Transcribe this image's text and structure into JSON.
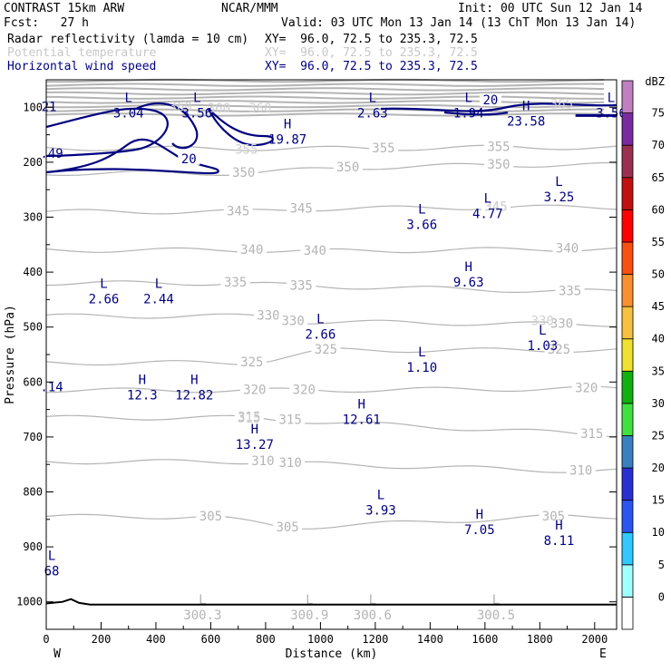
{
  "header": {
    "left1": "CONTRAST 15km ARW",
    "left2": "Fcst:   27 h",
    "center1": "NCAR/MMM",
    "init": "Init: 00 UTC Sun 12 Jan 14",
    "valid": "Valid: 03 UTC Mon 13 Jan 14 (13 ChT Mon 13 Jan 14)",
    "field1": "Radar reflectivity (lamda = 10 cm)",
    "field2": "Potential temperature",
    "field3": "Horizontal wind speed",
    "xy1": "XY=  96.0, 72.5 to 235.3, 72.5",
    "xy2": "XY=  96.0, 72.5 to 235.3, 72.5",
    "xy3": "XY=  96.0, 72.5 to 235.3, 72.5"
  },
  "colors": {
    "theta": "#b4b4b4",
    "wind": "#000080",
    "axis": "#000000"
  },
  "chart_data": {
    "type": "cross-section",
    "xlabel": "Distance (km)",
    "ylabel": "Pressure (hPa)",
    "xlim": [
      0,
      2080
    ],
    "ylim": [
      1050,
      50
    ],
    "x_ticks": [
      0,
      200,
      400,
      600,
      800,
      1000,
      1200,
      1400,
      1600,
      1800,
      2000
    ],
    "y_ticks": [
      100,
      200,
      300,
      400,
      500,
      600,
      700,
      800,
      900,
      1000
    ],
    "x_ends": {
      "left": "W",
      "right": "E"
    },
    "colorbar": {
      "unit": "dBZ",
      "levels": [
        0,
        5,
        10,
        15,
        20,
        25,
        30,
        35,
        40,
        45,
        50,
        55,
        60,
        65,
        70,
        75
      ],
      "colors": [
        "#ffffff",
        "#a0ffff",
        "#30c8ff",
        "#2a55f0",
        "#2a30d0",
        "#3a80c0",
        "#40e040",
        "#10b010",
        "#f0e030",
        "#f8c040",
        "#f89030",
        "#f85010",
        "#ff0000",
        "#c01010",
        "#9a3050",
        "#7a2aa0",
        "#c080c0"
      ]
    },
    "theta_contours": [
      {
        "value": 355,
        "labels": [
          {
            "x": 1230,
            "p": 175
          },
          {
            "x": 1650,
            "p": 173
          }
        ]
      },
      {
        "value": 350,
        "labels": [
          {
            "x": 720,
            "p": 220
          },
          {
            "x": 1100,
            "p": 210
          },
          {
            "x": 1650,
            "p": 205
          }
        ]
      },
      {
        "value": 345,
        "labels": [
          {
            "x": 700,
            "p": 290
          },
          {
            "x": 930,
            "p": 285
          },
          {
            "x": 1640,
            "p": 282
          }
        ]
      },
      {
        "value": 340,
        "labels": [
          {
            "x": 750,
            "p": 360
          },
          {
            "x": 980,
            "p": 362
          },
          {
            "x": 1900,
            "p": 358
          }
        ]
      },
      {
        "value": 335,
        "labels": [
          {
            "x": 690,
            "p": 420
          },
          {
            "x": 930,
            "p": 425
          },
          {
            "x": 1910,
            "p": 435
          }
        ]
      },
      {
        "value": 330,
        "labels": [
          {
            "x": 810,
            "p": 480
          },
          {
            "x": 900,
            "p": 490
          },
          {
            "x": 1880,
            "p": 495
          }
        ]
      },
      {
        "value": 325,
        "labels": [
          {
            "x": 750,
            "p": 565
          },
          {
            "x": 1020,
            "p": 542
          },
          {
            "x": 1870,
            "p": 542
          }
        ]
      },
      {
        "value": 320,
        "labels": [
          {
            "x": 760,
            "p": 615
          },
          {
            "x": 940,
            "p": 615
          },
          {
            "x": 1970,
            "p": 612
          }
        ]
      },
      {
        "value": 315,
        "labels": [
          {
            "x": 740,
            "p": 665
          },
          {
            "x": 890,
            "p": 670
          },
          {
            "x": 1990,
            "p": 695
          }
        ]
      },
      {
        "value": 310,
        "labels": [
          {
            "x": 790,
            "p": 745
          },
          {
            "x": 890,
            "p": 748
          },
          {
            "x": 1950,
            "p": 762
          }
        ]
      },
      {
        "value": 305,
        "labels": [
          {
            "x": 600,
            "p": 845
          },
          {
            "x": 880,
            "p": 865
          },
          {
            "x": 1850,
            "p": 845
          }
        ]
      }
    ],
    "wind_contour_labels": [
      {
        "text": "20",
        "x": 520,
        "p": 195
      },
      {
        "text": "20",
        "x": 1620,
        "p": 88
      }
    ],
    "extrema": [
      {
        "type": "L",
        "value": "3.04",
        "x": 300,
        "p": 97,
        "color": "wind"
      },
      {
        "type": "L",
        "value": "3.56",
        "x": 550,
        "p": 97,
        "color": "wind"
      },
      {
        "type": "L",
        "value": "2.63",
        "x": 1190,
        "p": 97,
        "color": "wind"
      },
      {
        "type": "L",
        "value": "1.94",
        "x": 1540,
        "p": 97,
        "color": "wind"
      },
      {
        "type": "H",
        "value": "23.58",
        "x": 1750,
        "p": 112,
        "color": "wind"
      },
      {
        "type": "L",
        "value": "3.56",
        "x": 2060,
        "p": 97,
        "color": "wind"
      },
      {
        "type": "H",
        "value": "19.87",
        "x": 880,
        "p": 145,
        "color": "wind"
      },
      {
        "type": "L",
        "value": "3.25",
        "x": 1870,
        "p": 250,
        "color": "wind"
      },
      {
        "type": "L",
        "value": "4.77",
        "x": 1610,
        "p": 280,
        "color": "wind"
      },
      {
        "type": "L",
        "value": "3.66",
        "x": 1370,
        "p": 300,
        "color": "wind"
      },
      {
        "type": "H",
        "value": "9.63",
        "x": 1540,
        "p": 405,
        "color": "wind"
      },
      {
        "type": "L",
        "value": "2.66",
        "x": 210,
        "p": 435,
        "color": "wind"
      },
      {
        "type": "L",
        "value": "2.44",
        "x": 410,
        "p": 435,
        "color": "wind"
      },
      {
        "type": "L",
        "value": "2.66",
        "x": 1000,
        "p": 500,
        "color": "wind"
      },
      {
        "type": "L",
        "value": "1.03",
        "x": 1810,
        "p": 520,
        "color": "wind"
      },
      {
        "type": "L",
        "value": "1.10",
        "x": 1370,
        "p": 560,
        "color": "wind"
      },
      {
        "type": "H",
        "value": "12.3",
        "x": 350,
        "p": 610,
        "color": "wind"
      },
      {
        "type": "H",
        "value": "12.82",
        "x": 540,
        "p": 610,
        "color": "wind"
      },
      {
        "type": "H",
        "value": "12.61",
        "x": 1150,
        "p": 655,
        "color": "wind"
      },
      {
        "type": "H",
        "value": "13.27",
        "x": 760,
        "p": 700,
        "color": "wind"
      },
      {
        "type": "L",
        "value": "3.93",
        "x": 1220,
        "p": 820,
        "color": "wind"
      },
      {
        "type": "H",
        "value": "7.05",
        "x": 1580,
        "p": 855,
        "color": "wind"
      },
      {
        "type": "H",
        "value": "8.11",
        "x": 1870,
        "p": 875,
        "color": "wind"
      },
      {
        "type": "L",
        "value": "68",
        "x": 20,
        "p": 930,
        "color": "wind"
      },
      {
        "type": "L",
        "value": "300.3",
        "x": 570,
        "p": 1010,
        "color": "theta"
      },
      {
        "type": "L",
        "value": "300.9",
        "x": 960,
        "p": 1010,
        "color": "theta"
      },
      {
        "type": "L",
        "value": "300.6",
        "x": 1190,
        "p": 1010,
        "color": "theta"
      },
      {
        "type": "L",
        "value": "300.5",
        "x": 1640,
        "p": 1010,
        "color": "theta"
      }
    ],
    "edge_values": [
      {
        "text": "21",
        "x": 10,
        "p": 100
      },
      {
        "text": ".49",
        "x": 20,
        "p": 185
      },
      {
        "text": ".14",
        "x": 20,
        "p": 610
      }
    ],
    "top_theta_labels": [
      {
        "text": "360",
        "x": 490,
        "p": 100
      },
      {
        "text": "360",
        "x": 630,
        "p": 103
      },
      {
        "text": "360",
        "x": 780,
        "p": 103
      },
      {
        "text": "365",
        "x": 1880,
        "p": 95
      },
      {
        "text": "355",
        "x": 730,
        "p": 178
      },
      {
        "text": "330",
        "x": 1810,
        "p": 490
      },
      {
        "text": "345",
        "x": 1640,
        "p": 282
      },
      {
        "text": "315",
        "x": 740,
        "p": 667
      }
    ]
  }
}
